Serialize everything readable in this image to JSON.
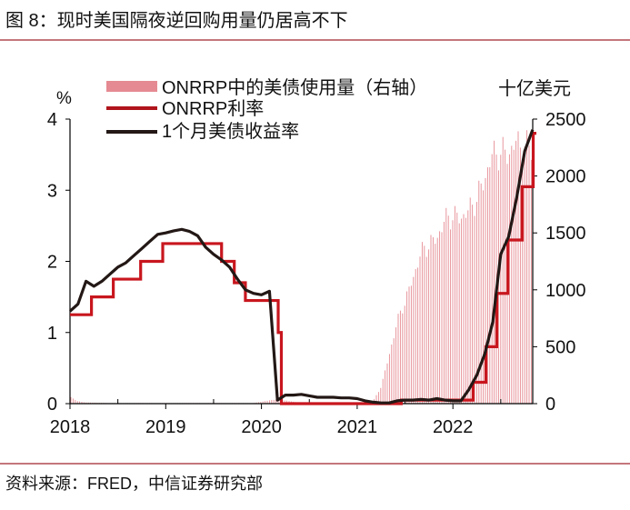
{
  "title": "图 8：现时美国隔夜逆回购用量仍居高不下",
  "source": "资料来源：FRED，中信证券研究部",
  "colors": {
    "accent": "#a0262e",
    "bars": "#e58a92",
    "onrrp_rate": "#c8161e",
    "tbill": "#231815"
  },
  "chart_data": {
    "type": "bar+line",
    "left_axis": {
      "label": "%",
      "ylim": [
        0,
        4
      ],
      "ticks": [
        "0",
        "1",
        "2",
        "3",
        "4"
      ]
    },
    "right_axis": {
      "label": "十亿美元",
      "ylim": [
        0,
        2500
      ],
      "ticks": [
        "0",
        "500",
        "1000",
        "1500",
        "2000",
        "2500"
      ]
    },
    "x_axis": {
      "range": [
        "2018-01",
        "2022-11"
      ],
      "ticks": [
        "2018",
        "2019",
        "2020",
        "2021",
        "2022"
      ]
    },
    "grid": false,
    "legend_position": "top",
    "series": [
      {
        "name": "ONRRP中的美债使用量（右轴）",
        "type": "bar",
        "axis": "right",
        "x": [
          "2018-01",
          "2018-02",
          "2018-03",
          "2018-06",
          "2018-12",
          "2019-06",
          "2019-12",
          "2020-03",
          "2020-06",
          "2020-12",
          "2021-01",
          "2021-02",
          "2021-03",
          "2021-04",
          "2021-05",
          "2021-06",
          "2021-07",
          "2021-08",
          "2021-09",
          "2021-10",
          "2021-11",
          "2021-12",
          "2022-01",
          "2022-02",
          "2022-03",
          "2022-04",
          "2022-05",
          "2022-06",
          "2022-07",
          "2022-08",
          "2022-09",
          "2022-10",
          "2022-11"
        ],
        "values": [
          60,
          20,
          10,
          5,
          5,
          5,
          5,
          40,
          5,
          5,
          5,
          5,
          20,
          150,
          420,
          720,
          900,
          1100,
          1330,
          1400,
          1450,
          1620,
          1650,
          1630,
          1700,
          1800,
          1980,
          2200,
          2200,
          2200,
          2300,
          2250,
          2250
        ]
      },
      {
        "name": "ONRRP利率",
        "type": "step",
        "axis": "left",
        "x": [
          "2018-01",
          "2018-03-22",
          "2018-06-14",
          "2018-09-27",
          "2018-12-20",
          "2019-06-20",
          "2019-08-01",
          "2019-09-19",
          "2019-10-31",
          "2020-03-04",
          "2020-03-16",
          "2021-06-17",
          "2022-03-17",
          "2022-05-05",
          "2022-06-16",
          "2022-07-28",
          "2022-09-22",
          "2022-11-03",
          "2022-11-15"
        ],
        "values": [
          1.25,
          1.5,
          1.75,
          2.0,
          2.25,
          2.25,
          2.0,
          1.7,
          1.45,
          1.0,
          0.0,
          0.05,
          0.3,
          0.8,
          1.55,
          2.3,
          3.05,
          3.8,
          3.8
        ]
      },
      {
        "name": "1个月美债收益率",
        "type": "line",
        "axis": "left",
        "x": [
          "2018-01",
          "2018-02",
          "2018-03",
          "2018-04",
          "2018-05",
          "2018-06",
          "2018-07",
          "2018-08",
          "2018-09",
          "2018-10",
          "2018-11",
          "2018-12",
          "2019-01",
          "2019-02",
          "2019-03",
          "2019-04",
          "2019-05",
          "2019-06",
          "2019-07",
          "2019-08",
          "2019-09",
          "2019-10",
          "2019-11",
          "2019-12",
          "2020-01",
          "2020-02",
          "2020-03",
          "2020-04",
          "2020-05",
          "2020-06",
          "2020-07",
          "2020-08",
          "2020-09",
          "2020-10",
          "2020-11",
          "2020-12",
          "2021-01",
          "2021-02",
          "2021-03",
          "2021-04",
          "2021-05",
          "2021-06",
          "2021-07",
          "2021-08",
          "2021-09",
          "2021-10",
          "2021-11",
          "2021-12",
          "2022-01",
          "2022-02",
          "2022-03",
          "2022-04",
          "2022-05",
          "2022-06",
          "2022-07",
          "2022-08",
          "2022-09",
          "2022-10",
          "2022-11"
        ],
        "values": [
          1.3,
          1.4,
          1.72,
          1.65,
          1.72,
          1.82,
          1.92,
          1.98,
          2.08,
          2.18,
          2.28,
          2.38,
          2.4,
          2.43,
          2.45,
          2.42,
          2.36,
          2.2,
          2.1,
          2.02,
          1.92,
          1.75,
          1.6,
          1.55,
          1.53,
          1.58,
          0.05,
          0.12,
          0.12,
          0.13,
          0.11,
          0.09,
          0.09,
          0.09,
          0.08,
          0.08,
          0.07,
          0.04,
          0.02,
          0.01,
          0.01,
          0.04,
          0.05,
          0.05,
          0.06,
          0.05,
          0.07,
          0.05,
          0.04,
          0.04,
          0.2,
          0.4,
          0.7,
          1.15,
          2.1,
          2.35,
          2.9,
          3.55,
          3.85
        ]
      }
    ]
  }
}
